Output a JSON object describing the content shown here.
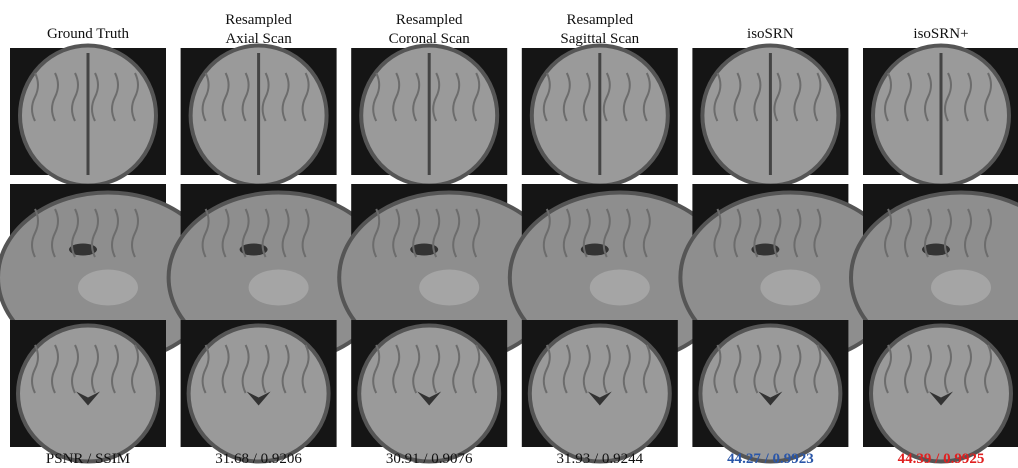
{
  "columns": [
    {
      "header": [
        "Ground Truth"
      ],
      "metric": "PSNR / SSIM",
      "metric_color": "#111111",
      "metric_bold": false
    },
    {
      "header": [
        "Resampled",
        "Axial Scan"
      ],
      "metric": "31.68 / 0.9206",
      "metric_color": "#111111",
      "metric_bold": false
    },
    {
      "header": [
        "Resampled",
        "Coronal Scan"
      ],
      "metric": "30.91 / 0.9076",
      "metric_color": "#111111",
      "metric_bold": false
    },
    {
      "header": [
        "Resampled",
        "Sagittal Scan"
      ],
      "metric": "31.93 / 0.9244",
      "metric_color": "#111111",
      "metric_bold": false
    },
    {
      "header": [
        "isoSRN"
      ],
      "metric": "44.27 / 0.9923",
      "metric_color": "#2a56a8",
      "metric_bold": true
    },
    {
      "header": [
        "isoSRN+"
      ],
      "metric": "44.39 / 0.9925",
      "metric_color": "#e02020",
      "metric_bold": true
    }
  ]
}
